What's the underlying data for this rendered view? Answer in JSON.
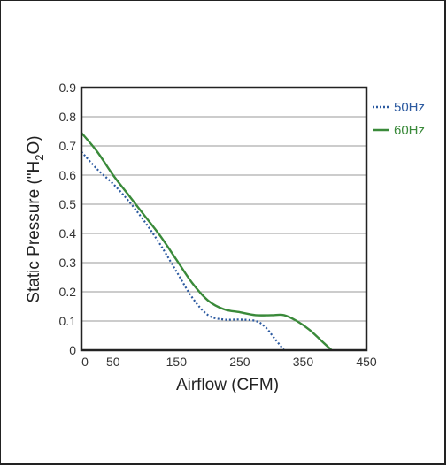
{
  "chart_data": {
    "type": "line",
    "title": "",
    "xlabel": "Airflow (CFM)",
    "ylabel": "Static Pressure (\"H₂O)",
    "xlim": [
      0,
      450
    ],
    "ylim": [
      0,
      0.9
    ],
    "x_ticks": [
      "0",
      "50",
      "150",
      "250",
      "350",
      "450"
    ],
    "x_tick_values": [
      0,
      50,
      150,
      250,
      350,
      450
    ],
    "y_ticks": [
      "0",
      "0.1",
      "0.2",
      "0.3",
      "0.4",
      "0.5",
      "0.6",
      "0.7",
      "0.8",
      "0.9"
    ],
    "y_tick_values": [
      0,
      0.1,
      0.2,
      0.3,
      0.4,
      0.5,
      0.6,
      0.7,
      0.8,
      0.9
    ],
    "grid": "horizontal",
    "legend": "right",
    "series": [
      {
        "name": "50Hz",
        "color": "#2c5aa0",
        "style": "dotted",
        "x": [
          0,
          25,
          50,
          75,
          100,
          125,
          150,
          175,
          200,
          225,
          250,
          275,
          290,
          305,
          320
        ],
        "y": [
          0.68,
          0.62,
          0.57,
          0.51,
          0.44,
          0.36,
          0.27,
          0.18,
          0.12,
          0.105,
          0.105,
          0.1,
          0.08,
          0.04,
          0.0
        ]
      },
      {
        "name": "60Hz",
        "color": "#3a8a3a",
        "style": "solid",
        "x": [
          0,
          25,
          50,
          75,
          100,
          125,
          150,
          175,
          200,
          225,
          250,
          275,
          300,
          320,
          340,
          360,
          380,
          395
        ],
        "y": [
          0.745,
          0.68,
          0.6,
          0.53,
          0.46,
          0.39,
          0.31,
          0.23,
          0.17,
          0.14,
          0.13,
          0.12,
          0.12,
          0.12,
          0.1,
          0.07,
          0.03,
          0.0
        ]
      }
    ]
  }
}
